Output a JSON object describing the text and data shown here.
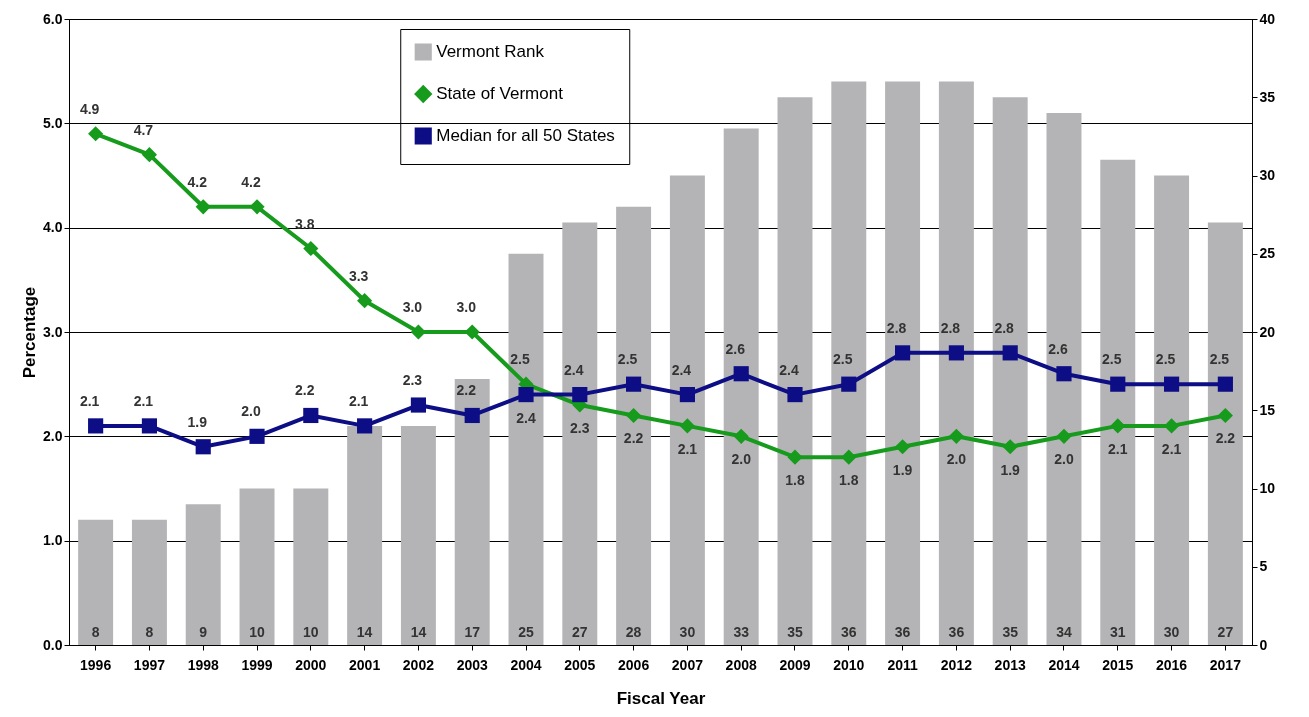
{
  "chart_data": {
    "type": "bar",
    "xlabel": "Fiscal Year",
    "ylabel": "Percentage",
    "categories": [
      "1996",
      "1997",
      "1998",
      "1999",
      "2000",
      "2001",
      "2002",
      "2003",
      "2004",
      "2005",
      "2006",
      "2007",
      "2008",
      "2009",
      "2010",
      "2011",
      "2012",
      "2013",
      "2014",
      "2015",
      "2016",
      "2017"
    ],
    "series": [
      {
        "name": "Vermont Rank",
        "axis": "y2",
        "color": "#b4b4b6",
        "values": [
          8,
          8,
          9,
          10,
          10,
          14,
          14,
          17,
          25,
          27,
          28,
          30,
          33,
          35,
          36,
          36,
          36,
          35,
          34,
          31,
          30,
          27
        ]
      },
      {
        "name": "State of Vermont",
        "type": "line",
        "marker": "diamond",
        "color": "#169b1c",
        "values": [
          4.9,
          4.7,
          4.2,
          4.2,
          3.8,
          3.3,
          3.0,
          3.0,
          2.5,
          2.3,
          2.2,
          2.1,
          2.0,
          1.8,
          1.8,
          1.9,
          2.0,
          1.9,
          2.0,
          2.1,
          2.1,
          2.2
        ],
        "value_labels": [
          "4.9",
          "4.7",
          "4.2",
          "4.2",
          "3.8",
          "3.3",
          "3.0",
          "3.0",
          "2.5",
          "2.3",
          "2.2",
          "2.1",
          "2.0",
          "1.8",
          "1.8",
          "1.9",
          "2.0",
          "1.9",
          "2.0",
          "2.1",
          "2.1",
          "2.2"
        ]
      },
      {
        "name": "Median for all 50 States",
        "type": "line",
        "marker": "square",
        "color": "#0d0d85",
        "values": [
          2.1,
          2.1,
          1.9,
          2.0,
          2.2,
          2.1,
          2.3,
          2.2,
          2.4,
          2.4,
          2.5,
          2.4,
          2.6,
          2.4,
          2.5,
          2.8,
          2.8,
          2.8,
          2.6,
          2.5,
          2.5,
          2.5
        ],
        "value_labels": [
          "2.1",
          "2.1",
          "1.9",
          "2.0",
          "2.2",
          "2.1",
          "2.3",
          "2.2",
          "2.4",
          "2.4",
          "2.5",
          "2.4",
          "2.6",
          "2.4",
          "2.5",
          "2.8",
          "2.8",
          "2.8",
          "2.6",
          "2.5",
          "2.5",
          "2.5"
        ]
      }
    ],
    "ylim": [
      0,
      6
    ],
    "yticks": [
      {
        "value": 0,
        "label": "0.0"
      },
      {
        "value": 1,
        "label": "1.0"
      },
      {
        "value": 2,
        "label": "2.0"
      },
      {
        "value": 3,
        "label": "3.0"
      },
      {
        "value": 4,
        "label": "4.0"
      },
      {
        "value": 5,
        "label": "5.0"
      },
      {
        "value": 6,
        "label": "6.0"
      }
    ],
    "y2lim": [
      0,
      40
    ],
    "y2ticks": [
      0,
      5,
      10,
      15,
      20,
      25,
      30,
      35,
      40
    ],
    "grid": "y",
    "legend": "top",
    "data_labels": true
  }
}
